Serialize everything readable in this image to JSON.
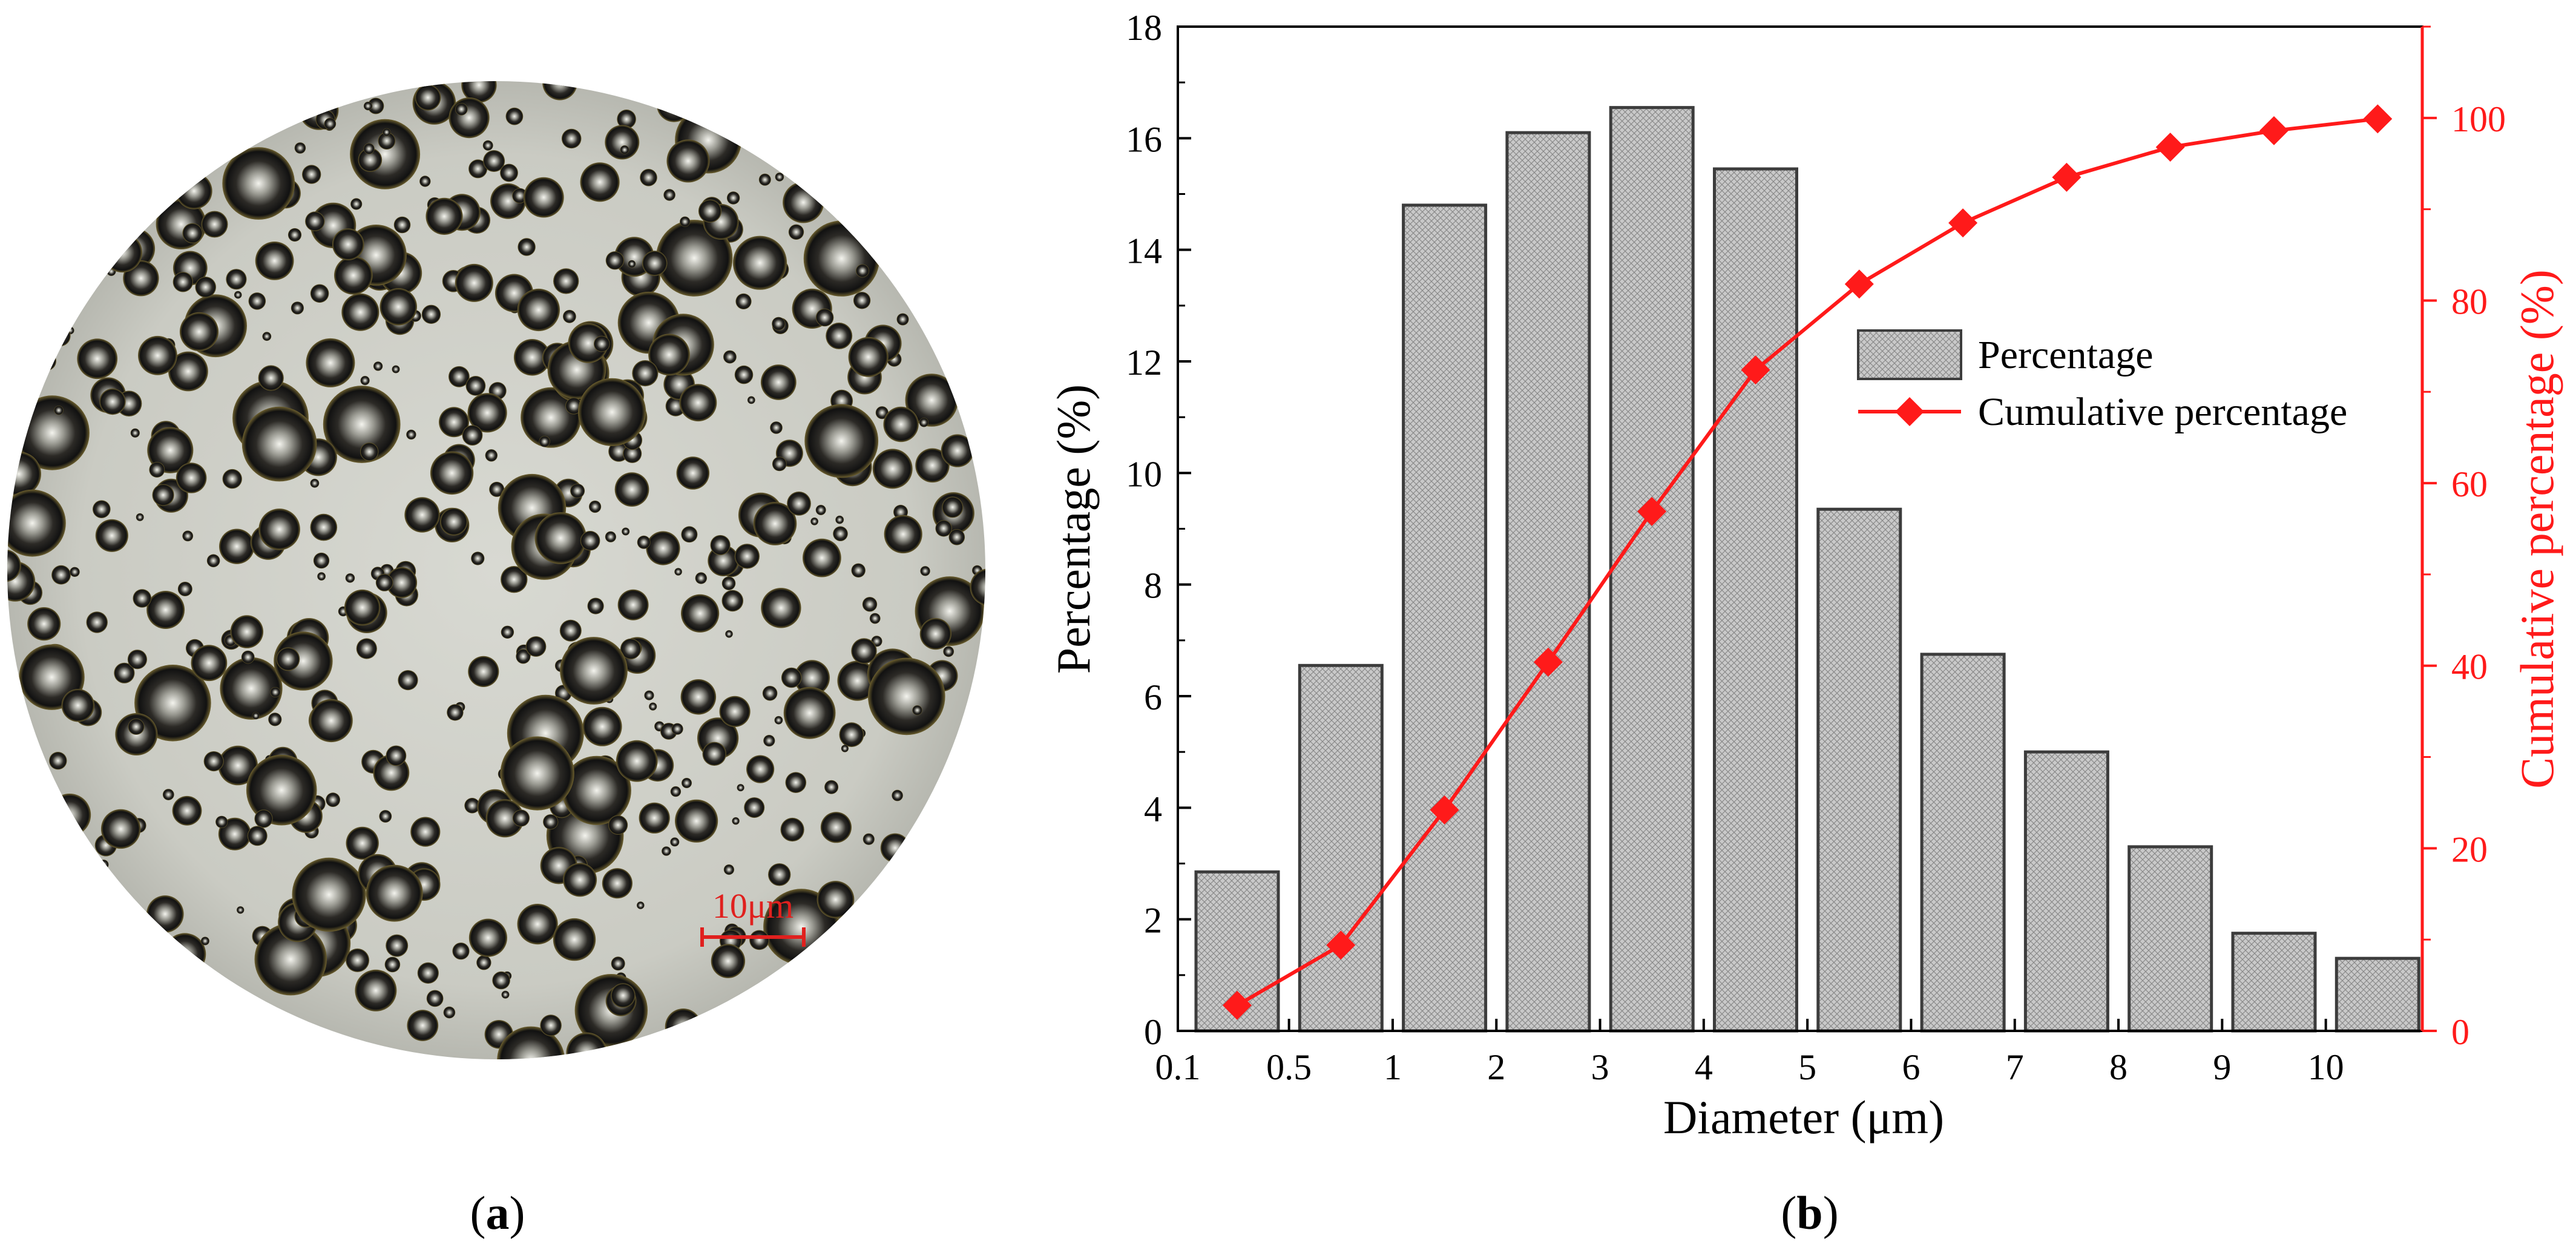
{
  "panels": {
    "a": {
      "caption_letter": "a",
      "scale_bar_label": "10μm"
    },
    "b": {
      "caption_letter": "b"
    }
  },
  "colors": {
    "bar_fill": "#c4c4c4",
    "bar_stroke": "#3c3c3c",
    "line": "#ff1a1a",
    "right_axis": "#ff1a1a",
    "left_axis": "#000000",
    "micrograph_bg": "#cfd1c8",
    "scale_bar": "#e0201e"
  },
  "chart_data": {
    "type": "bar",
    "title": "",
    "xlabel": "Diameter (μm)",
    "ylabel": "Percentage (%)",
    "ylabel_right": "Cumulative percentage (%)",
    "x_tick_labels": [
      "0.1",
      "0.5",
      "1",
      "2",
      "3",
      "4",
      "5",
      "6",
      "7",
      "8",
      "9",
      "10"
    ],
    "categories": [
      "0.1–0.5",
      "0.5–1",
      "1–2",
      "2–3",
      "3–4",
      "4–5",
      "5–6",
      "6–7",
      "7–8",
      "8–9",
      "9–10",
      ">10"
    ],
    "ylim": [
      0,
      18
    ],
    "yticks": [
      "0",
      "2",
      "4",
      "6",
      "8",
      "10",
      "12",
      "14",
      "16",
      "18"
    ],
    "ylim_right": [
      0,
      110
    ],
    "yticks_right": [
      "0",
      "20",
      "40",
      "60",
      "80",
      "100"
    ],
    "legend_position": "upper-right",
    "series": [
      {
        "name": "Percentage",
        "kind": "bar",
        "axis": "left",
        "values": [
          2.85,
          6.55,
          14.8,
          16.1,
          16.55,
          15.45,
          9.35,
          6.75,
          5.0,
          3.3,
          1.75,
          1.3
        ]
      },
      {
        "name": "Cumulative percentage",
        "kind": "line",
        "axis": "right",
        "marker": "diamond",
        "values": [
          2.8,
          9.4,
          24.2,
          40.4,
          56.9,
          72.4,
          81.8,
          88.5,
          93.5,
          96.8,
          98.6,
          99.9
        ]
      }
    ]
  }
}
